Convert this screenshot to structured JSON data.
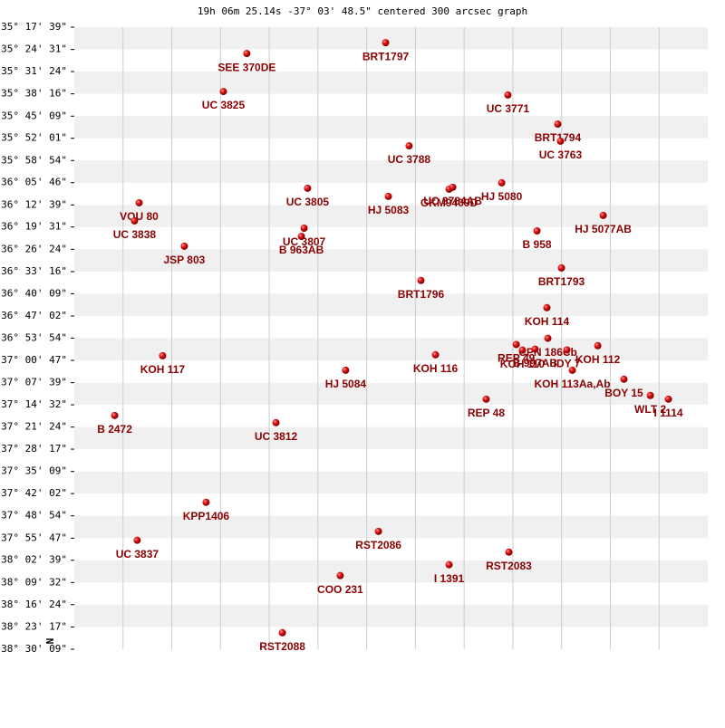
{
  "chart_data": {
    "type": "scatter",
    "title": "19h 06m 25.14s -37° 03' 48.5\" centered 300 arcsec graph",
    "north_label": "N",
    "color": "#cc0000",
    "label_color": "#8b0000",
    "grid": true,
    "xlim": [
      -1.632,
      1.632
    ],
    "ylim": [
      -38.503,
      -35.294
    ],
    "yticks": [
      {
        "value": -35.294,
        "label": "-35° 17' 39\""
      },
      {
        "value": -35.409,
        "label": "-35° 24' 31\""
      },
      {
        "value": -35.523,
        "label": "-35° 31' 24\""
      },
      {
        "value": -35.638,
        "label": "-35° 38' 16\""
      },
      {
        "value": -35.753,
        "label": "-35° 45' 09\""
      },
      {
        "value": -35.867,
        "label": "-35° 52' 01\""
      },
      {
        "value": -35.982,
        "label": "-35° 58' 54\""
      },
      {
        "value": -36.096,
        "label": "-36° 05' 46\""
      },
      {
        "value": -36.211,
        "label": "-36° 12' 39\""
      },
      {
        "value": -36.325,
        "label": "-36° 19' 31\""
      },
      {
        "value": -36.44,
        "label": "-36° 26' 24\""
      },
      {
        "value": -36.555,
        "label": "-36° 33' 16\""
      },
      {
        "value": -36.669,
        "label": "-36° 40' 09\""
      },
      {
        "value": -36.784,
        "label": "-36° 47' 02\""
      },
      {
        "value": -36.898,
        "label": "-36° 53' 54\""
      },
      {
        "value": -37.013,
        "label": "-37° 00' 47\""
      },
      {
        "value": -37.128,
        "label": "-37° 07' 39\""
      },
      {
        "value": -37.242,
        "label": "-37° 14' 32\""
      },
      {
        "value": -37.357,
        "label": "-37° 21' 24\""
      },
      {
        "value": -37.471,
        "label": "-37° 28' 17\""
      },
      {
        "value": -37.586,
        "label": "-37° 35' 09\""
      },
      {
        "value": -37.7,
        "label": "-37° 42' 02\""
      },
      {
        "value": -37.815,
        "label": "-37° 48' 54\""
      },
      {
        "value": -37.93,
        "label": "-37° 55' 47\""
      },
      {
        "value": -38.044,
        "label": "-38° 02' 39\""
      },
      {
        "value": -38.159,
        "label": "-38° 09' 32\""
      },
      {
        "value": -38.273,
        "label": "-38° 16' 24\""
      },
      {
        "value": -38.388,
        "label": "-38° 23' 17\""
      },
      {
        "value": -38.503,
        "label": "-38° 30' 09\""
      }
    ],
    "labels": [
      "SEE 370DE",
      "BRT1797",
      "UC 3825",
      "UC 3771",
      "BRT1794",
      "UC 3763",
      "UC 3788",
      "UC 3805",
      "HJ 5083",
      "GKM9409D",
      "UC 3784AB",
      "HJ 5080",
      "VOU  80",
      "UC 3838",
      "HJ 5077AB",
      "B   958",
      "UC 3807",
      "B   963AB",
      "JSP 803",
      "BRT1793",
      "BRT1796",
      "KOH 114",
      "CPN 186Cb",
      "REP  49",
      "B   997AB",
      "KOH 110",
      "IDY  7",
      "KOH 112",
      "KOH 117",
      "KOH 116",
      "HJ 5084",
      "KOH 113Aa,Ab",
      "BOY  15",
      "WLT  2",
      "I  1114",
      "REP  48",
      "B  2472",
      "UC 3812",
      "KPP1406",
      "RST2086",
      "UC 3837",
      "RST2083",
      "I  1391",
      "COO 231",
      "RST2088"
    ],
    "x": [
      -0.743,
      -0.028,
      -0.864,
      0.602,
      0.859,
      0.873,
      0.093,
      -0.43,
      -0.014,
      0.299,
      0.318,
      0.57,
      -1.298,
      -1.322,
      1.093,
      0.752,
      -0.448,
      -0.462,
      -1.065,
      0.878,
      0.154,
      0.803,
      0.808,
      0.645,
      0.742,
      0.677,
      0.906,
      1.065,
      -1.177,
      0.229,
      -0.234,
      0.934,
      1.2,
      1.336,
      1.429,
      0.49,
      -1.424,
      -0.593,
      -0.953,
      -0.065,
      -1.308,
      0.607,
      0.299,
      -0.262,
      -0.56
    ],
    "y": [
      -35.43,
      -35.374,
      -35.626,
      -35.644,
      -35.794,
      -35.882,
      -35.906,
      -36.125,
      -36.167,
      -36.13,
      -36.12,
      -36.097,
      -36.2,
      -36.293,
      -36.265,
      -36.345,
      -36.331,
      -36.373,
      -36.424,
      -36.536,
      -36.601,
      -36.741,
      -36.899,
      -36.931,
      -36.955,
      -36.96,
      -36.959,
      -36.937,
      -36.989,
      -36.984,
      -37.064,
      -37.064,
      -37.11,
      -37.194,
      -37.213,
      -37.213,
      -37.297,
      -37.334,
      -37.745,
      -37.895,
      -37.941,
      -38.002,
      -38.067,
      -38.123,
      -38.418
    ]
  }
}
